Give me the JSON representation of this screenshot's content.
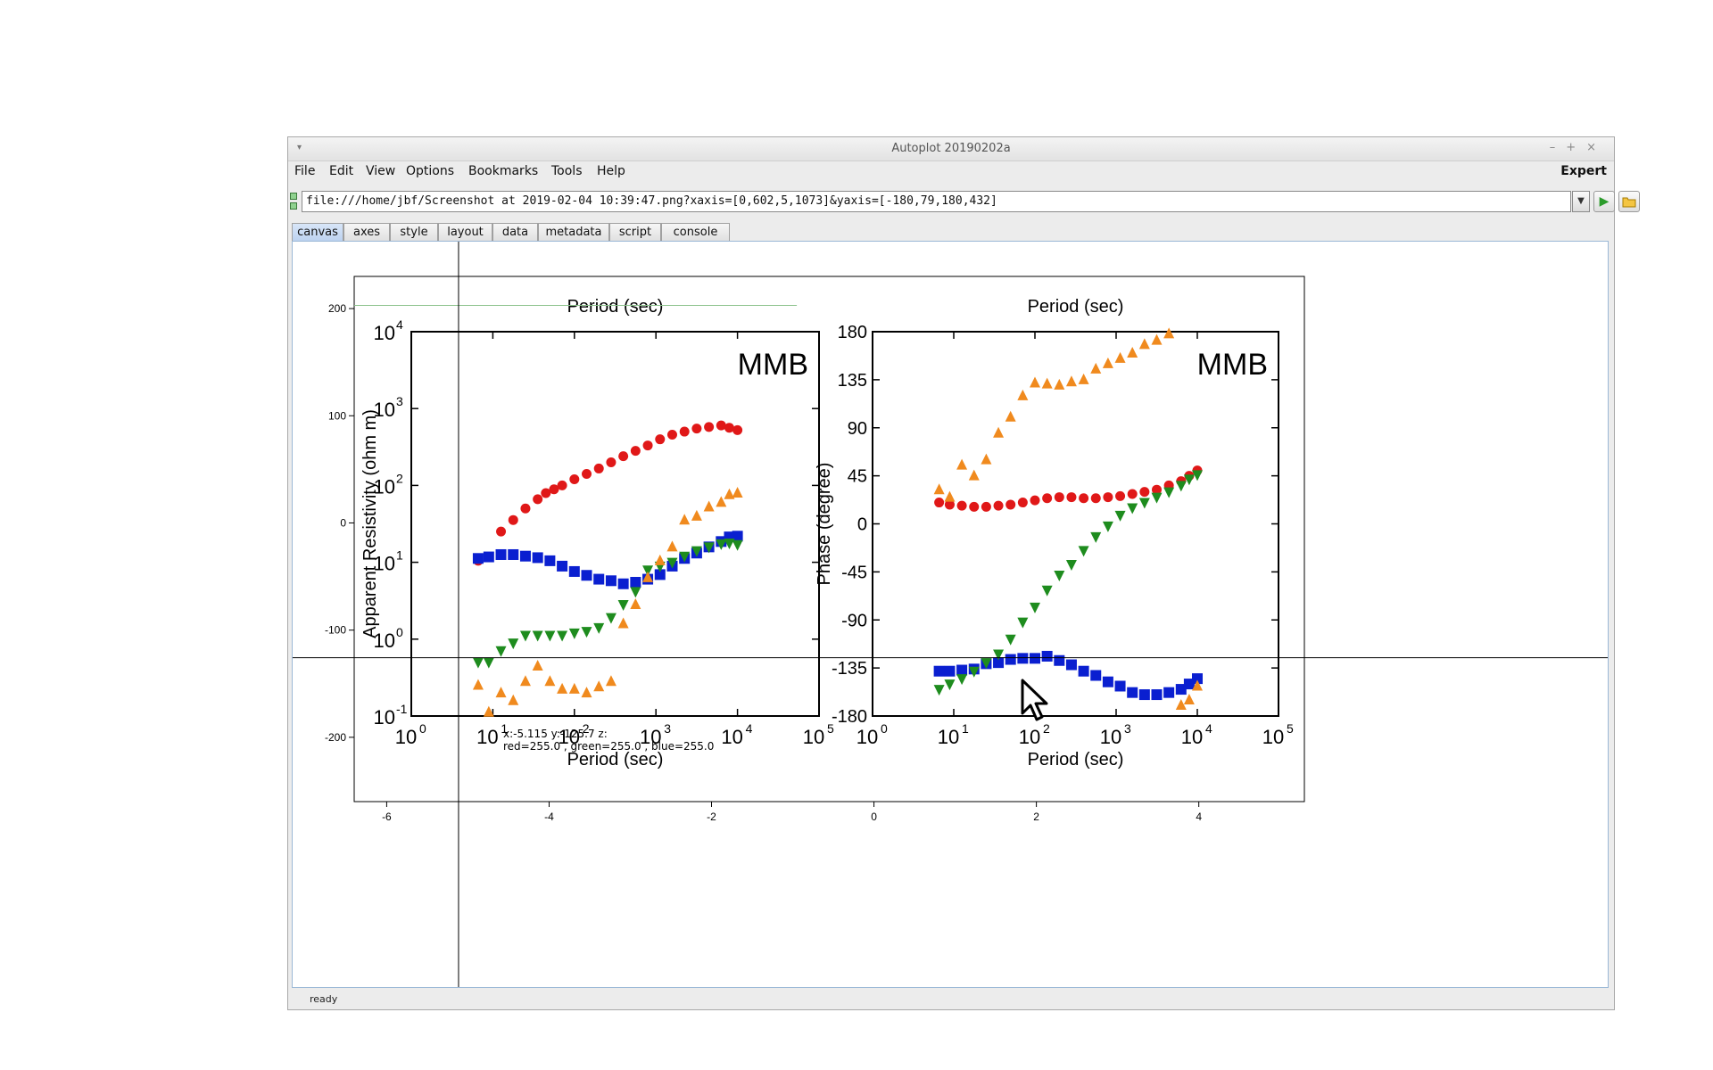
{
  "window": {
    "title": "Autoplot 20190202a",
    "menu_arrow": "▾",
    "controls": [
      "–",
      "+",
      "×"
    ]
  },
  "menu": {
    "items": [
      "File",
      "Edit",
      "View",
      "Options",
      "Bookmarks",
      "Tools",
      "Help"
    ],
    "expert": "Expert"
  },
  "url": {
    "value": "file:///home/jbf/Screenshot at 2019-02-04 10:39:47.png?xaxis=[0,602,5,1073]&yaxis=[-180,79,180,432]",
    "dropdown_icon": "▼",
    "go_icon": "▶"
  },
  "tabs": [
    {
      "label": "canvas",
      "active": true
    },
    {
      "label": "axes"
    },
    {
      "label": "style"
    },
    {
      "label": "layout"
    },
    {
      "label": "data"
    },
    {
      "label": "metadata"
    },
    {
      "label": "script"
    },
    {
      "label": "console"
    }
  ],
  "status": "ready",
  "readout": {
    "line1": "x:-5.115  y:-125.7  z:",
    "line2": "red=255.0 , green=255.0 , blue=255.0"
  },
  "chart_data": [
    {
      "type": "scatter",
      "title": "",
      "xlabel": "",
      "ylabel": "",
      "xlim": [
        -6.4,
        5.3
      ],
      "ylim": [
        -260,
        230
      ],
      "x_ticks": [
        "-6",
        "-4",
        "-2",
        "0",
        "2",
        "4"
      ],
      "y_ticks": [
        "200",
        "100",
        "0",
        "-100",
        "-200"
      ],
      "grid": false,
      "crosshair": {
        "x": -5.115,
        "y": -125.7
      }
    },
    {
      "type": "scatter",
      "note_label": "MMB",
      "xlabel": "Period (sec)",
      "top_label": "Period (sec)",
      "ylabel": "Apparent Resistivity (ohm m)",
      "x_log_range": [
        0,
        5
      ],
      "y_log_range": [
        -1,
        4
      ],
      "x_ticks": [
        "10",
        "10",
        "10",
        "10",
        "10",
        "10"
      ],
      "x_tick_exps": [
        "0",
        "1",
        "2",
        "3",
        "4",
        "5"
      ],
      "y_ticks": [
        "10",
        "10",
        "10",
        "10",
        "10",
        "10"
      ],
      "y_tick_exps": [
        "-1",
        "0",
        "1",
        "2",
        "3",
        "4"
      ],
      "series": [
        {
          "marker": "circle",
          "color": "#e01818",
          "points": [
            [
              0.82,
              1.02
            ],
            [
              1.1,
              1.4
            ],
            [
              1.25,
              1.55
            ],
            [
              1.4,
              1.7
            ],
            [
              1.55,
              1.82
            ],
            [
              1.65,
              1.9
            ],
            [
              1.75,
              1.95
            ],
            [
              1.85,
              2.0
            ],
            [
              2.0,
              2.08
            ],
            [
              2.15,
              2.15
            ],
            [
              2.3,
              2.22
            ],
            [
              2.45,
              2.3
            ],
            [
              2.6,
              2.38
            ],
            [
              2.75,
              2.45
            ],
            [
              2.9,
              2.52
            ],
            [
              3.05,
              2.6
            ],
            [
              3.2,
              2.66
            ],
            [
              3.35,
              2.7
            ],
            [
              3.5,
              2.74
            ],
            [
              3.65,
              2.76
            ],
            [
              3.8,
              2.78
            ],
            [
              3.9,
              2.75
            ],
            [
              4.0,
              2.72
            ]
          ]
        },
        {
          "marker": "square",
          "color": "#0a1fd0",
          "points": [
            [
              0.82,
              1.05
            ],
            [
              0.95,
              1.07
            ],
            [
              1.1,
              1.1
            ],
            [
              1.25,
              1.1
            ],
            [
              1.4,
              1.08
            ],
            [
              1.55,
              1.06
            ],
            [
              1.7,
              1.02
            ],
            [
              1.85,
              0.95
            ],
            [
              2.0,
              0.88
            ],
            [
              2.15,
              0.83
            ],
            [
              2.3,
              0.78
            ],
            [
              2.45,
              0.76
            ],
            [
              2.6,
              0.72
            ],
            [
              2.75,
              0.74
            ],
            [
              2.9,
              0.78
            ],
            [
              3.05,
              0.84
            ],
            [
              3.2,
              0.95
            ],
            [
              3.35,
              1.05
            ],
            [
              3.5,
              1.12
            ],
            [
              3.65,
              1.2
            ],
            [
              3.8,
              1.27
            ],
            [
              3.9,
              1.33
            ],
            [
              4.0,
              1.34
            ]
          ]
        },
        {
          "marker": "triangle-down",
          "color": "#1e8c1e",
          "points": [
            [
              0.82,
              -0.3
            ],
            [
              0.95,
              -0.3
            ],
            [
              1.1,
              -0.15
            ],
            [
              1.25,
              -0.05
            ],
            [
              1.4,
              0.05
            ],
            [
              1.55,
              0.05
            ],
            [
              1.7,
              0.05
            ],
            [
              1.85,
              0.05
            ],
            [
              2.0,
              0.08
            ],
            [
              2.15,
              0.1
            ],
            [
              2.3,
              0.15
            ],
            [
              2.45,
              0.28
            ],
            [
              2.6,
              0.45
            ],
            [
              2.75,
              0.62
            ],
            [
              2.9,
              0.9
            ],
            [
              3.05,
              0.95
            ],
            [
              3.2,
              1.0
            ],
            [
              3.35,
              1.08
            ],
            [
              3.5,
              1.15
            ],
            [
              3.65,
              1.2
            ],
            [
              3.8,
              1.24
            ],
            [
              3.9,
              1.25
            ],
            [
              4.0,
              1.23
            ]
          ]
        },
        {
          "marker": "triangle-up",
          "color": "#f08a1e",
          "points": [
            [
              0.82,
              -0.6
            ],
            [
              0.95,
              -0.95
            ],
            [
              1.1,
              -0.7
            ],
            [
              1.25,
              -0.8
            ],
            [
              1.4,
              -0.55
            ],
            [
              1.55,
              -0.35
            ],
            [
              1.7,
              -0.55
            ],
            [
              1.85,
              -0.65
            ],
            [
              2.0,
              -0.65
            ],
            [
              2.15,
              -0.7
            ],
            [
              2.3,
              -0.62
            ],
            [
              2.45,
              -0.55
            ],
            [
              2.6,
              0.2
            ],
            [
              2.75,
              0.45
            ],
            [
              2.9,
              0.8
            ],
            [
              3.05,
              1.02
            ],
            [
              3.2,
              1.2
            ],
            [
              3.35,
              1.55
            ],
            [
              3.5,
              1.6
            ],
            [
              3.65,
              1.72
            ],
            [
              3.8,
              1.78
            ],
            [
              3.9,
              1.88
            ],
            [
              4.0,
              1.9
            ]
          ]
        }
      ]
    },
    {
      "type": "scatter",
      "note_label": "MMB",
      "xlabel": "Period (sec)",
      "top_label": "Period (sec)",
      "ylabel": "Phase (degree)",
      "x_log_range": [
        0,
        5
      ],
      "ylim": [
        -180,
        180
      ],
      "x_ticks": [
        "10",
        "10",
        "10",
        "10",
        "10",
        "10"
      ],
      "x_tick_exps": [
        "0",
        "1",
        "2",
        "3",
        "4",
        "5"
      ],
      "y_ticks": [
        "180",
        "135",
        "90",
        "45",
        "0",
        "-45",
        "-90",
        "-135",
        "-180"
      ],
      "series": [
        {
          "marker": "circle",
          "color": "#e01818",
          "points": [
            [
              0.82,
              20
            ],
            [
              0.95,
              18
            ],
            [
              1.1,
              17
            ],
            [
              1.25,
              16
            ],
            [
              1.4,
              16
            ],
            [
              1.55,
              17
            ],
            [
              1.7,
              18
            ],
            [
              1.85,
              20
            ],
            [
              2.0,
              22
            ],
            [
              2.15,
              24
            ],
            [
              2.3,
              25
            ],
            [
              2.45,
              25
            ],
            [
              2.6,
              24
            ],
            [
              2.75,
              24
            ],
            [
              2.9,
              25
            ],
            [
              3.05,
              26
            ],
            [
              3.2,
              28
            ],
            [
              3.35,
              30
            ],
            [
              3.5,
              32
            ],
            [
              3.65,
              36
            ],
            [
              3.8,
              40
            ],
            [
              3.9,
              45
            ],
            [
              4.0,
              50
            ]
          ]
        },
        {
          "marker": "square",
          "color": "#0a1fd0",
          "points": [
            [
              0.82,
              -138
            ],
            [
              0.95,
              -138
            ],
            [
              1.1,
              -137
            ],
            [
              1.25,
              -136
            ],
            [
              1.4,
              -131
            ],
            [
              1.55,
              -130
            ],
            [
              1.7,
              -127
            ],
            [
              1.85,
              -126
            ],
            [
              2.0,
              -126
            ],
            [
              2.15,
              -124
            ],
            [
              2.3,
              -128
            ],
            [
              2.45,
              -132
            ],
            [
              2.6,
              -138
            ],
            [
              2.75,
              -142
            ],
            [
              2.9,
              -148
            ],
            [
              3.05,
              -152
            ],
            [
              3.2,
              -158
            ],
            [
              3.35,
              -160
            ],
            [
              3.5,
              -160
            ],
            [
              3.65,
              -158
            ],
            [
              3.8,
              -155
            ],
            [
              3.9,
              -150
            ],
            [
              4.0,
              -145
            ]
          ]
        },
        {
          "marker": "triangle-down",
          "color": "#1e8c1e",
          "points": [
            [
              0.82,
              -155
            ],
            [
              0.95,
              -150
            ],
            [
              1.1,
              -145
            ],
            [
              1.25,
              -138
            ],
            [
              1.4,
              -130
            ],
            [
              1.55,
              -122
            ],
            [
              1.7,
              -108
            ],
            [
              1.85,
              -92
            ],
            [
              2.0,
              -78
            ],
            [
              2.15,
              -62
            ],
            [
              2.3,
              -48
            ],
            [
              2.45,
              -38
            ],
            [
              2.6,
              -25
            ],
            [
              2.75,
              -12
            ],
            [
              2.9,
              -2
            ],
            [
              3.05,
              8
            ],
            [
              3.2,
              15
            ],
            [
              3.35,
              20
            ],
            [
              3.5,
              25
            ],
            [
              3.65,
              30
            ],
            [
              3.8,
              36
            ],
            [
              3.9,
              42
            ],
            [
              4.0,
              46
            ]
          ]
        },
        {
          "marker": "triangle-up",
          "color": "#f08a1e",
          "points": [
            [
              0.82,
              32
            ],
            [
              0.95,
              25
            ],
            [
              1.1,
              55
            ],
            [
              1.25,
              45
            ],
            [
              1.4,
              60
            ],
            [
              1.55,
              85
            ],
            [
              1.7,
              100
            ],
            [
              1.85,
              120
            ],
            [
              2.0,
              132
            ],
            [
              2.15,
              131
            ],
            [
              2.3,
              130
            ],
            [
              2.45,
              133
            ],
            [
              2.6,
              135
            ],
            [
              2.75,
              145
            ],
            [
              2.9,
              150
            ],
            [
              3.05,
              155
            ],
            [
              3.2,
              160
            ],
            [
              3.35,
              168
            ],
            [
              3.5,
              172
            ],
            [
              3.65,
              178
            ],
            [
              3.8,
              -170
            ],
            [
              3.9,
              -165
            ],
            [
              4.0,
              -152
            ]
          ]
        }
      ]
    }
  ]
}
